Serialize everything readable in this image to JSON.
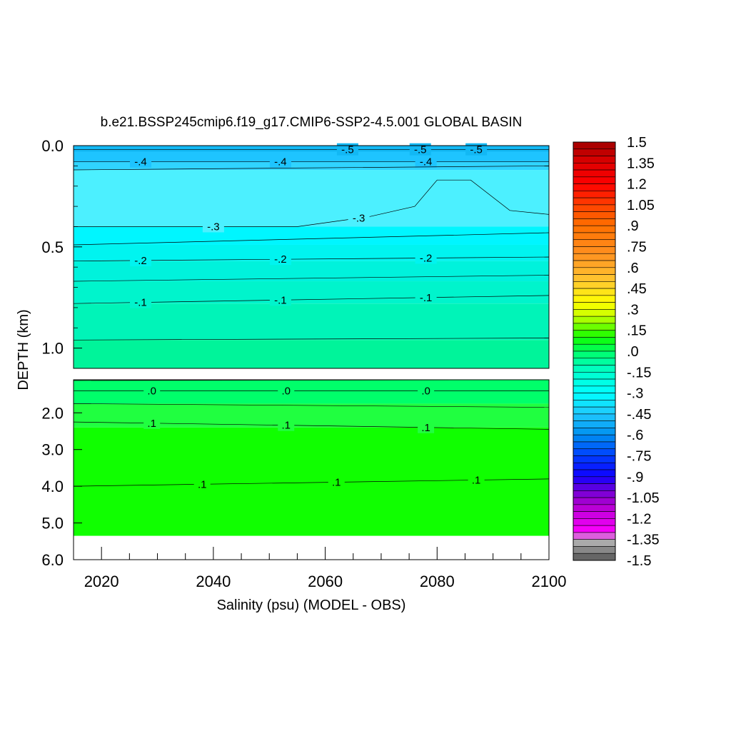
{
  "chart_data": {
    "type": "heatmap",
    "title": "b.e21.BSSP245cmip6.f19_g17.CMIP6-SSP2-4.5.001 GLOBAL BASIN",
    "xlabel": "Salinity (psu) (MODEL - OBS)",
    "ylabel": "DEPTH (km)",
    "xlim": [
      2015,
      2100
    ],
    "x_ticks": [
      "2020",
      "2040",
      "2060",
      "2080",
      "2100"
    ],
    "upper_panel": {
      "ylim": [
        0.0,
        1.1
      ],
      "y_ticks": [
        "0.0",
        "0.5",
        "1.0"
      ]
    },
    "lower_panel": {
      "ylim": [
        1.1,
        6.0
      ],
      "y_ticks": [
        "2.0",
        "3.0",
        "4.0",
        "5.0",
        "6.0"
      ],
      "data_bottom_km": 5.35
    },
    "bands": [
      {
        "panel": "upper",
        "top": 0.0,
        "bottom": 0.03,
        "value": -0.55
      },
      {
        "panel": "upper",
        "top": 0.03,
        "bottom": 0.08,
        "value": -0.5
      },
      {
        "panel": "upper",
        "top": 0.08,
        "bottom": 0.12,
        "value": -0.45
      },
      {
        "panel": "upper",
        "top": 0.12,
        "bottom": 0.4,
        "value": -0.35
      },
      {
        "panel": "upper",
        "top": 0.4,
        "bottom": 0.49,
        "value": -0.3
      },
      {
        "panel": "upper",
        "top": 0.49,
        "bottom": 0.57,
        "value": -0.25
      },
      {
        "panel": "upper",
        "top": 0.57,
        "bottom": 0.67,
        "value": -0.2
      },
      {
        "panel": "upper",
        "top": 0.67,
        "bottom": 0.78,
        "value": -0.15
      },
      {
        "panel": "upper",
        "top": 0.78,
        "bottom": 0.96,
        "value": -0.1
      },
      {
        "panel": "upper",
        "top": 0.96,
        "bottom": 1.1,
        "value": -0.05
      },
      {
        "panel": "lower",
        "top": 1.1,
        "bottom": 1.75,
        "value": 0.0
      },
      {
        "panel": "lower",
        "top": 1.75,
        "bottom": 2.4,
        "value": 0.05
      },
      {
        "panel": "lower",
        "top": 2.4,
        "bottom": 5.35,
        "value": 0.1
      }
    ],
    "contours": [
      {
        "panel": "upper",
        "depth": [
          0.08,
          0.08
        ],
        "label": "-.4",
        "label_years": [
          2027,
          2052,
          2078
        ]
      },
      {
        "panel": "upper",
        "depth": [
          0.12,
          0.1
        ],
        "label": "",
        "label_years": []
      },
      {
        "panel": "upper",
        "depth": [
          0.4,
          0.4,
          0.35,
          0.3,
          0.17,
          0.17,
          0.32,
          0.34
        ],
        "x": [
          2015,
          2055,
          2068,
          2076,
          2080,
          2086,
          2093,
          2100
        ],
        "label": "-.3",
        "label_years": [
          2040,
          2066
        ]
      },
      {
        "panel": "upper",
        "depth": [
          0.49,
          0.43
        ],
        "label": "",
        "label_years": []
      },
      {
        "panel": "upper",
        "depth": [
          0.57,
          0.55
        ],
        "label": "-.2",
        "label_years": [
          2027,
          2052,
          2078
        ]
      },
      {
        "panel": "upper",
        "depth": [
          0.67,
          0.64
        ],
        "label": "",
        "label_years": []
      },
      {
        "panel": "upper",
        "depth": [
          0.78,
          0.74
        ],
        "label": "-.1",
        "label_years": [
          2027,
          2052,
          2078
        ]
      },
      {
        "panel": "upper",
        "depth": [
          0.96,
          0.95
        ],
        "label": "",
        "label_years": []
      },
      {
        "panel": "lower",
        "depth": [
          1.12,
          1.1
        ],
        "label": "",
        "label_years": []
      },
      {
        "panel": "lower",
        "depth": [
          1.4,
          1.4
        ],
        "label": ".0",
        "label_years": [
          2029,
          2053,
          2078
        ]
      },
      {
        "panel": "lower",
        "depth": [
          1.75,
          1.85
        ],
        "label": "",
        "label_years": []
      },
      {
        "panel": "lower",
        "depth": [
          2.25,
          2.45
        ],
        "label": ".1",
        "label_years": [
          2029,
          2053,
          2078
        ]
      },
      {
        "panel": "lower",
        "depth": [
          4.0,
          3.8
        ],
        "label": ".1",
        "label_years": [
          2038,
          2062,
          2087
        ]
      },
      {
        "panel": "upper",
        "depth": [
          0.02,
          0.02
        ],
        "label": "-.5",
        "label_years": [
          2064,
          2077,
          2087
        ]
      }
    ],
    "colorbar": {
      "min": -1.5,
      "max": 1.5,
      "step": 0.05,
      "labels": [
        "1.5",
        "1.35",
        "1.2",
        "1.05",
        ".9",
        ".75",
        ".6",
        ".45",
        ".3",
        ".15",
        ".0",
        "-.15",
        "-.3",
        "-.45",
        "-.6",
        "-.75",
        "-.9",
        "-1.05",
        "-1.2",
        "-1.35",
        "-1.5"
      ]
    }
  }
}
